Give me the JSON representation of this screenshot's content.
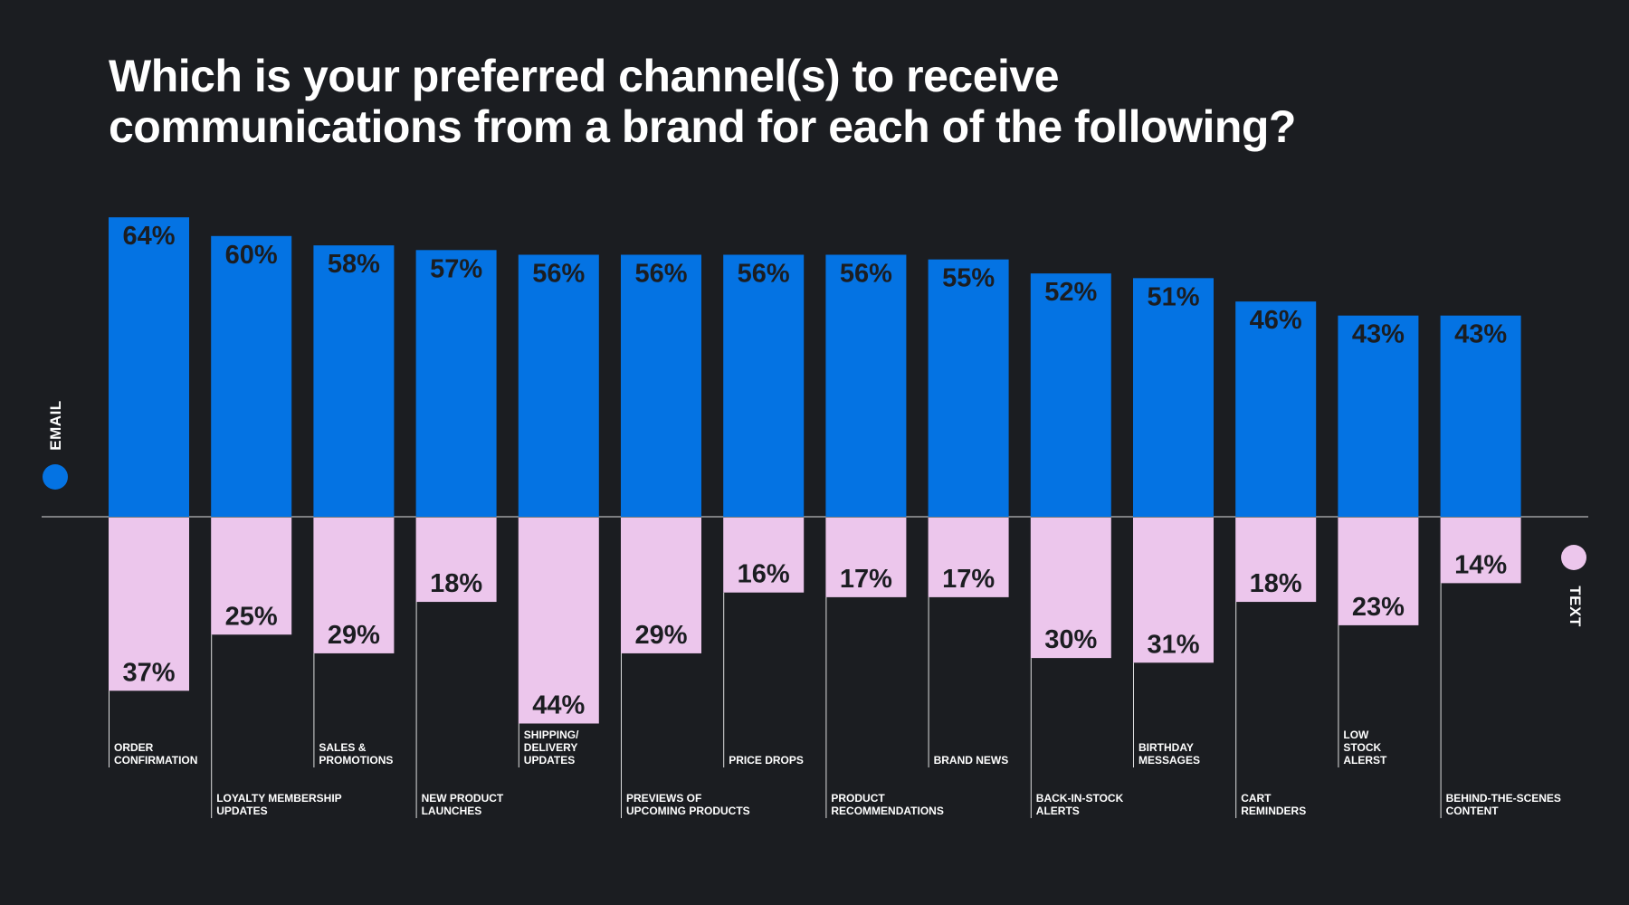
{
  "title": {
    "line1": "Which is your preferred channel(s) to receive",
    "line2": "communications from a brand for each of the following?"
  },
  "legend": {
    "email_label": "EMAIL",
    "text_label": "TEXT"
  },
  "colors": {
    "background": "#1b1d21",
    "email": "#0473e3",
    "text": "#ecc6ec",
    "label_dark": "#1b1d21",
    "white": "#ffffff"
  },
  "chart_data": {
    "type": "bar",
    "categories": [
      "ORDER\nCONFIRMATION",
      "LOYALTY MEMBERSHIP\nUPDATES",
      "SALES &\nPROMOTIONS",
      "NEW PRODUCT\nLAUNCHES",
      "SHIPPING/\nDELIVERY\nUPDATES",
      "PREVIEWS OF\nUPCOMING PRODUCTS",
      "PRICE DROPS",
      "PRODUCT\nRECOMMENDATIONS",
      "BRAND NEWS",
      "BACK-IN-STOCK\nALERTS",
      "BIRTHDAY\nMESSAGES",
      "CART\nREMINDERS",
      "LOW\nSTOCK\nALERST",
      "BEHIND-THE-SCENES\nCONTENT"
    ],
    "series": [
      {
        "name": "EMAIL",
        "values": [
          64,
          60,
          58,
          57,
          56,
          56,
          56,
          56,
          55,
          52,
          51,
          46,
          43,
          43
        ]
      },
      {
        "name": "TEXT",
        "values": [
          37,
          25,
          29,
          18,
          44,
          29,
          16,
          17,
          17,
          30,
          31,
          18,
          23,
          14
        ]
      }
    ],
    "value_suffix": "%",
    "ylim": [
      -44,
      64
    ],
    "title": "Which is your preferred channel(s) to receive communications from a brand for each of the following?",
    "xlabel": "",
    "ylabel": "",
    "grid": false
  }
}
